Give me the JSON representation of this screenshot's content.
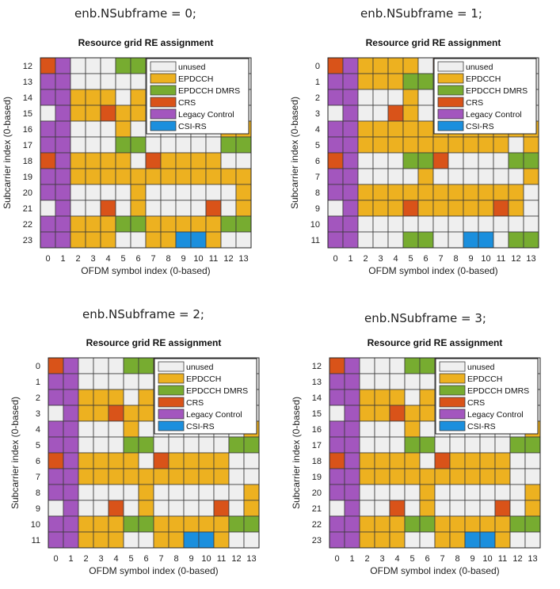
{
  "colors": {
    "unused": "#efefef",
    "EPDCCH": "#edb120",
    "EPDCCH DMRS": "#77ac30",
    "CRS": "#d95319",
    "Legacy Control": "#a356be",
    "CSI-RS": "#1b8fdd"
  },
  "legend_entries": [
    "unused",
    "EPDCCH",
    "EPDCCH DMRS",
    "CRS",
    "Legacy Control",
    "CSI-RS"
  ],
  "chart_data": [
    {
      "type": "heatmap",
      "caption": "enb.NSubframe = 0;",
      "title": "Resource grid RE assignment",
      "xlabel": "OFDM symbol index (0-based)",
      "ylabel": "Subcarrier index (0-based)",
      "x_ticks": [
        "0",
        "1",
        "2",
        "3",
        "4",
        "5",
        "6",
        "7",
        "8",
        "9",
        "10",
        "11",
        "12",
        "13"
      ],
      "y_ticks": [
        "12",
        "13",
        "14",
        "15",
        "16",
        "17",
        "18",
        "19",
        "20",
        "21",
        "22",
        "23"
      ],
      "legend_position": "top-right",
      "key": {
        "U": "unused",
        "E": "EPDCCH",
        "D": "EPDCCH DMRS",
        "C": "CRS",
        "L": "Legacy Control",
        "S": "CSI-RS"
      },
      "grid": [
        "CLUUUDDCUUUCUU",
        "LLUUUUUUUUUUUU",
        "LLEEEUEUUUUUUU",
        "ULEECEEUUUUUUU",
        "LLUUUEUUUUUUEE",
        "LLUUUDDUUUUUDD",
        "CLEEEEUCEEEEUU",
        "LLEEEEEEEEEEEE",
        "LLUUUUEUUUUUUE",
        "ULUUCUEUUUUCUE",
        "LLEEEDDEEEEEDD",
        "LLEEEUUEESSEUU"
      ]
    },
    {
      "type": "heatmap",
      "caption": "enb.NSubframe = 1;",
      "title": "Resource grid RE assignment",
      "xlabel": "OFDM symbol index (0-based)",
      "ylabel": "Subcarrier index (0-based)",
      "x_ticks": [
        "0",
        "1",
        "2",
        "3",
        "4",
        "5",
        "6",
        "7",
        "8",
        "9",
        "10",
        "11",
        "12",
        "13"
      ],
      "y_ticks": [
        "0",
        "1",
        "2",
        "3",
        "4",
        "5",
        "6",
        "7",
        "8",
        "9",
        "10",
        "11"
      ],
      "legend_position": "top-right",
      "key": {
        "U": "unused",
        "E": "EPDCCH",
        "D": "EPDCCH DMRS",
        "C": "CRS",
        "L": "Legacy Control",
        "S": "CSI-RS"
      },
      "grid": [
        "CLEEEEUCUUUCUU",
        "LLEEEDDUUUUUUU",
        "LLUUUEUUUUUUUU",
        "ULUUCEUUUUUUUU",
        "LLEEEEEEEEEEEE",
        "LLEEEEEEEEEEUE",
        "CLUUUDDCUUUUDD",
        "LLUUUUEUUUUUUE",
        "LLEEEEEEEEEEEU",
        "ULEEECEEEEECEU",
        "LLUUUUUUUUUUUU",
        "LLUUUDDUUSSUDD"
      ]
    },
    {
      "type": "heatmap",
      "caption": "enb.NSubframe = 2;",
      "title": "Resource grid RE assignment",
      "xlabel": "OFDM symbol index (0-based)",
      "ylabel": "Subcarrier index (0-based)",
      "x_ticks": [
        "0",
        "1",
        "2",
        "3",
        "4",
        "5",
        "6",
        "7",
        "8",
        "9",
        "10",
        "11",
        "12",
        "13"
      ],
      "y_ticks": [
        "0",
        "1",
        "2",
        "3",
        "4",
        "5",
        "6",
        "7",
        "8",
        "9",
        "10",
        "11"
      ],
      "legend_position": "top-right",
      "key": {
        "U": "unused",
        "E": "EPDCCH",
        "D": "EPDCCH DMRS",
        "C": "CRS",
        "L": "Legacy Control",
        "S": "CSI-RS"
      },
      "grid": [
        "CLUUUDDCUUUCUU",
        "LLUUUUUUUUUUUU",
        "LLEEEUEUUUUUUU",
        "ULEECEEUUUUUUU",
        "LLUUUEUUUUUUUE",
        "LLUUUDDUUUUUDD",
        "CLEEEEUCEEEEUU",
        "LLEEEEEEEEEEUU",
        "LLUUUUEUUUUUUE",
        "ULUUCUEUUUUCUE",
        "LLEEEDDEEEEEDD",
        "LLEEEUUEESSEUU"
      ]
    },
    {
      "type": "heatmap",
      "caption": "enb.NSubframe = 3;",
      "title": "Resource grid RE assignment",
      "xlabel": "OFDM symbol index (0-based)",
      "ylabel": "Subcarrier index (0-based)",
      "x_ticks": [
        "0",
        "1",
        "2",
        "3",
        "4",
        "5",
        "6",
        "7",
        "8",
        "9",
        "10",
        "11",
        "12",
        "13"
      ],
      "y_ticks": [
        "12",
        "13",
        "14",
        "15",
        "16",
        "17",
        "18",
        "19",
        "20",
        "21",
        "22",
        "23"
      ],
      "legend_position": "top-right",
      "key": {
        "U": "unused",
        "E": "EPDCCH",
        "D": "EPDCCH DMRS",
        "C": "CRS",
        "L": "Legacy Control",
        "S": "CSI-RS"
      },
      "grid": [
        "CLUUUDDCUUUCUU",
        "LLUUUUUUUUUUUU",
        "LLEEEUEUUUUUUU",
        "ULEECEEUUUUUUU",
        "LLUUUEUUUUUUUE",
        "LLUUUDDUUUUUDD",
        "CLEEEEUCEEEEUU",
        "LLEEEEEEEEEEUU",
        "LLUUUUEUUUUUUE",
        "ULUUCUEUUUUCUE",
        "LLEEEDDEEEEEDD",
        "LLEEEUUEESSEUU"
      ]
    }
  ]
}
